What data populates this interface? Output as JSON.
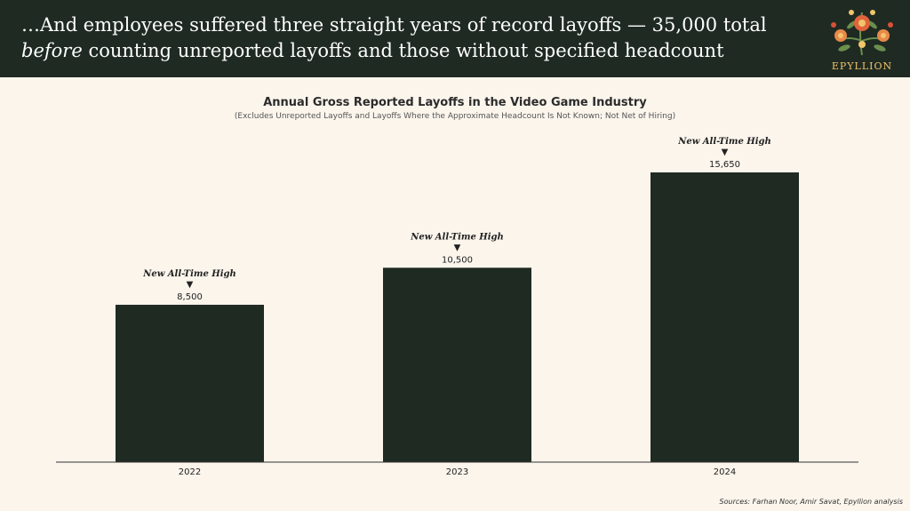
{
  "header": {
    "headline_line1": "…And employees suffered three straight years of record layoffs — 35,000 total",
    "headline_line2_italic": "before",
    "headline_line2_rest": " counting unreported layoffs and those without specified headcount",
    "logo_text": "EPYLLION"
  },
  "colors": {
    "header_bg": "#1f2a22",
    "bar": "#1f2a22",
    "background": "#fbf5ec",
    "logo_accent": "#f2c46b"
  },
  "chart_data": {
    "type": "bar",
    "title": "Annual Gross Reported Layoffs in the Video Game Industry",
    "subtitle": "(Excludes Unreported Layoffs and Layoffs Where the Approximate Headcount Is Not Known; Not Net of Hiring)",
    "categories": [
      "2022",
      "2023",
      "2024"
    ],
    "values": [
      8500,
      10500,
      15650
    ],
    "value_labels": [
      "8,500",
      "10,500",
      "15,650"
    ],
    "annotation": "New All-Time High",
    "annotation_marker": "▼",
    "ylim": [
      0,
      18000
    ],
    "grid": false,
    "legend": "none"
  },
  "source": "Sources: Farhan Noor, Amir Savat, Epyllion analysis"
}
